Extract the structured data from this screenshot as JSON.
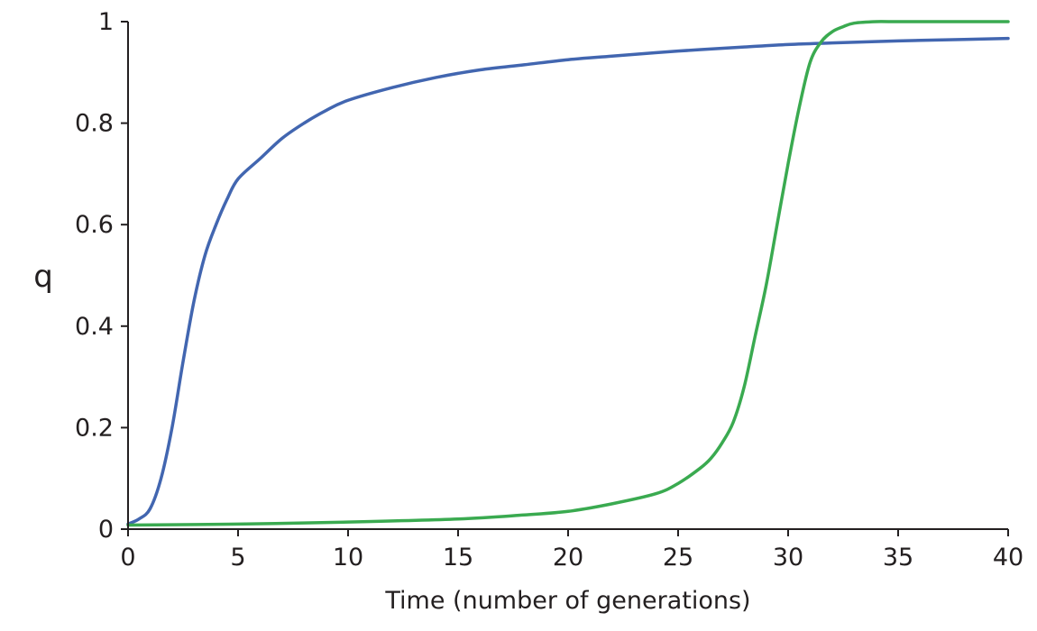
{
  "chart_data": {
    "type": "line",
    "title": "",
    "xlabel": "Time (number of generations)",
    "ylabel": "q",
    "xlim": [
      0,
      40
    ],
    "ylim": [
      0,
      1
    ],
    "xticks": [
      "0",
      "5",
      "10",
      "15",
      "20",
      "25",
      "30",
      "35",
      "40"
    ],
    "yticks": [
      "0",
      "0.2",
      "0.4",
      "0.6",
      "0.8",
      "1"
    ],
    "grid": false,
    "legend": "none",
    "series": [
      {
        "color": "#4266b0",
        "x": [
          0,
          0.5,
          1,
          1.5,
          2,
          2.5,
          3,
          3.5,
          4,
          4.5,
          5,
          6,
          7,
          8,
          9,
          10,
          12,
          14,
          16,
          18,
          20,
          22,
          25,
          28,
          30,
          32,
          35,
          38,
          40
        ],
        "y": [
          0.01,
          0.02,
          0.04,
          0.1,
          0.2,
          0.33,
          0.45,
          0.54,
          0.6,
          0.65,
          0.69,
          0.73,
          0.77,
          0.8,
          0.825,
          0.845,
          0.87,
          0.89,
          0.905,
          0.915,
          0.925,
          0.932,
          0.942,
          0.95,
          0.955,
          0.958,
          0.962,
          0.965,
          0.967
        ]
      },
      {
        "color": "#3aaa50",
        "x": [
          0,
          5,
          10,
          15,
          18,
          20,
          22,
          24,
          25,
          26,
          26.5,
          27,
          27.5,
          28,
          28.5,
          29,
          29.5,
          30,
          30.5,
          31,
          31.5,
          32,
          32.5,
          33,
          34,
          35,
          40
        ],
        "y": [
          0.008,
          0.01,
          0.014,
          0.02,
          0.028,
          0.035,
          0.05,
          0.07,
          0.09,
          0.12,
          0.14,
          0.17,
          0.21,
          0.28,
          0.38,
          0.48,
          0.6,
          0.72,
          0.83,
          0.92,
          0.96,
          0.98,
          0.99,
          0.997,
          1.0,
          1.0,
          1.0
        ]
      }
    ]
  }
}
